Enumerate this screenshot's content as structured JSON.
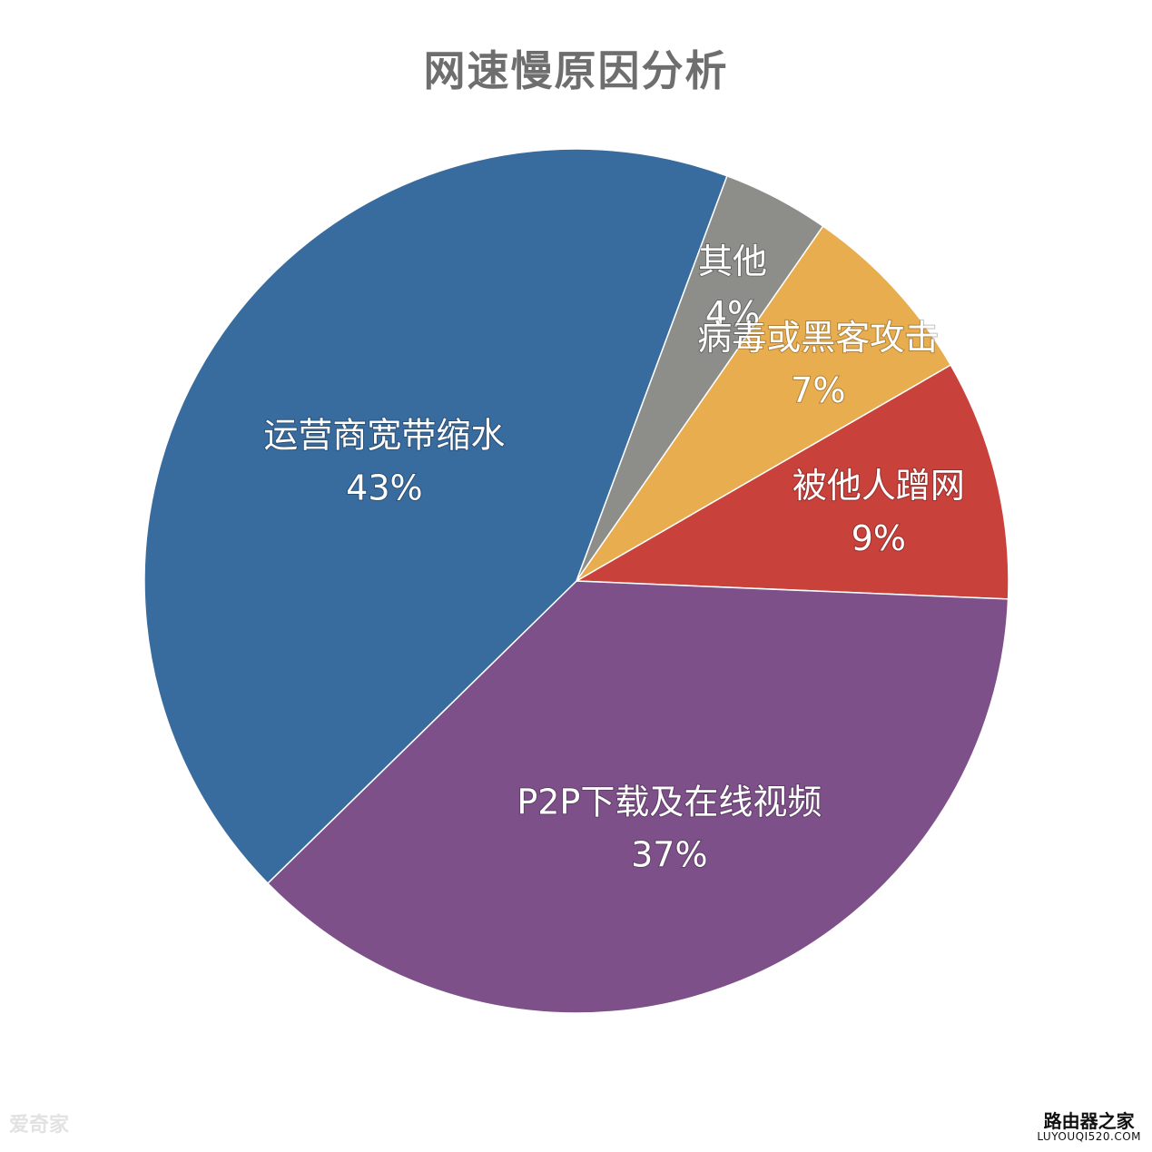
{
  "chart_data": {
    "type": "pie",
    "title": "网速慢原因分析",
    "slices": [
      {
        "label": "被他人蹭网",
        "value": 9,
        "value_label": "9%",
        "color": "#c8413b"
      },
      {
        "label": "P2P下载及在线视频",
        "value": 37,
        "value_label": "37%",
        "color": "#7e5089"
      },
      {
        "label": "运营商宽带缩水",
        "value": 43,
        "value_label": "43%",
        "color": "#386b9e"
      },
      {
        "label": "其他",
        "value": 4,
        "value_label": "4%",
        "color": "#8d8d8a"
      },
      {
        "label": "病毒或黑客攻击",
        "value": 7,
        "value_label": "7%",
        "color": "#e8ad4e"
      }
    ]
  },
  "watermarks": {
    "left": "爱奇家",
    "right_cn": "路由器之家",
    "right_en": "LUYOUQI520.COM"
  }
}
